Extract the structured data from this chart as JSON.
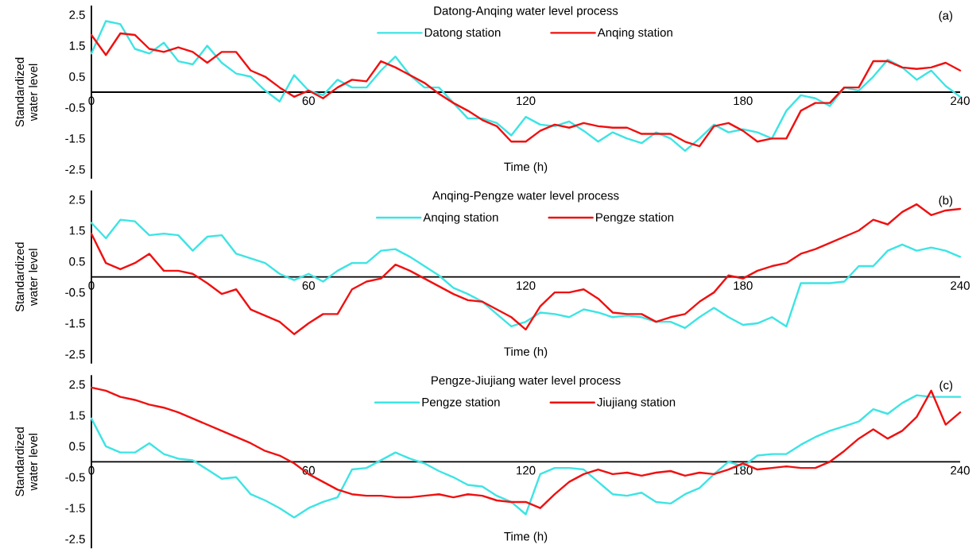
{
  "chart_data": [
    {
      "type": "line",
      "title": "Datong-Anqing water level process",
      "xlabel": "Time (h)",
      "ylabel": "Standardized water level",
      "annotations": [
        "(a)"
      ],
      "legend": "top",
      "x": [
        0,
        4,
        8,
        12,
        16,
        20,
        24,
        28,
        32,
        36,
        40,
        44,
        48,
        52,
        56,
        60,
        64,
        68,
        72,
        76,
        80,
        84,
        88,
        92,
        96,
        100,
        104,
        108,
        112,
        116,
        120,
        124,
        128,
        132,
        136,
        140,
        144,
        148,
        152,
        156,
        160,
        164,
        168,
        172,
        176,
        180,
        184,
        188,
        192,
        196,
        200,
        204,
        208,
        212,
        216,
        220,
        224,
        228,
        232,
        236,
        240
      ],
      "xlim": [
        0,
        240
      ],
      "xticks": [
        0,
        60,
        120,
        180,
        240
      ],
      "ylim": [
        -2.8,
        2.8
      ],
      "yticks": [
        -2.5,
        -1.5,
        -0.5,
        0.5,
        1.5,
        2.5
      ],
      "series": [
        {
          "name": "Datong station",
          "color": "#3de4e4",
          "values": [
            1.25,
            2.3,
            2.2,
            1.4,
            1.25,
            1.6,
            1.0,
            0.9,
            1.5,
            0.95,
            0.6,
            0.5,
            0.05,
            -0.3,
            0.55,
            0.05,
            -0.1,
            0.4,
            0.15,
            0.15,
            0.7,
            1.15,
            0.55,
            0.15,
            0.15,
            -0.35,
            -0.85,
            -0.85,
            -1.0,
            -1.4,
            -0.8,
            -1.05,
            -1.1,
            -0.95,
            -1.25,
            -1.6,
            -1.3,
            -1.5,
            -1.65,
            -1.3,
            -1.5,
            -1.9,
            -1.5,
            -1.05,
            -1.3,
            -1.2,
            -1.3,
            -1.5,
            -0.6,
            -0.1,
            -0.2,
            -0.45,
            0.15,
            0.05,
            0.5,
            1.05,
            0.8,
            0.4,
            0.7,
            0.2,
            -0.15
          ]
        },
        {
          "name": "Anqing station",
          "color": "#f01010",
          "values": [
            1.85,
            1.2,
            1.9,
            1.85,
            1.4,
            1.3,
            1.45,
            1.3,
            0.95,
            1.3,
            1.3,
            0.7,
            0.5,
            0.15,
            -0.15,
            0.05,
            -0.2,
            0.15,
            0.4,
            0.35,
            1.0,
            0.8,
            0.55,
            0.3,
            -0.05,
            -0.35,
            -0.6,
            -0.9,
            -1.1,
            -1.6,
            -1.6,
            -1.25,
            -1.05,
            -1.15,
            -1.0,
            -1.1,
            -1.15,
            -1.15,
            -1.35,
            -1.35,
            -1.35,
            -1.6,
            -1.75,
            -1.1,
            -1.0,
            -1.25,
            -1.6,
            -1.5,
            -1.5,
            -0.6,
            -0.35,
            -0.35,
            0.15,
            0.15,
            1.0,
            1.0,
            0.8,
            0.75,
            0.8,
            0.95,
            0.7
          ]
        }
      ]
    },
    {
      "type": "line",
      "title": "Anqing-Pengze water level process",
      "xlabel": "Time (h)",
      "ylabel": "Standardized water level",
      "annotations": [
        "(b)"
      ],
      "legend": "top",
      "x": [
        0,
        4,
        8,
        12,
        16,
        20,
        24,
        28,
        32,
        36,
        40,
        44,
        48,
        52,
        56,
        60,
        64,
        68,
        72,
        76,
        80,
        84,
        88,
        92,
        96,
        100,
        104,
        108,
        112,
        116,
        120,
        124,
        128,
        132,
        136,
        140,
        144,
        148,
        152,
        156,
        160,
        164,
        168,
        172,
        176,
        180,
        184,
        188,
        192,
        196,
        200,
        204,
        208,
        212,
        216,
        220,
        224,
        228,
        232,
        236,
        240
      ],
      "xlim": [
        0,
        240
      ],
      "xticks": [
        0,
        60,
        120,
        180,
        240
      ],
      "ylim": [
        -2.8,
        2.8
      ],
      "yticks": [
        -2.5,
        -1.5,
        -0.5,
        0.5,
        1.5,
        2.5
      ],
      "series": [
        {
          "name": "Anqing station",
          "color": "#3de4e4",
          "values": [
            1.75,
            1.25,
            1.85,
            1.8,
            1.35,
            1.4,
            1.35,
            0.85,
            1.3,
            1.35,
            0.75,
            0.6,
            0.45,
            0.1,
            -0.1,
            0.1,
            -0.15,
            0.2,
            0.45,
            0.45,
            0.85,
            0.9,
            0.65,
            0.35,
            0.05,
            -0.35,
            -0.55,
            -0.8,
            -1.2,
            -1.6,
            -1.45,
            -1.15,
            -1.2,
            -1.3,
            -1.05,
            -1.15,
            -1.3,
            -1.25,
            -1.3,
            -1.45,
            -1.45,
            -1.65,
            -1.3,
            -1.0,
            -1.3,
            -1.55,
            -1.5,
            -1.3,
            -1.6,
            -0.2,
            -0.2,
            -0.2,
            -0.15,
            0.35,
            0.35,
            0.85,
            1.05,
            0.85,
            0.95,
            0.85,
            0.65
          ]
        },
        {
          "name": "Pengze station",
          "color": "#f01010",
          "values": [
            1.4,
            0.45,
            0.25,
            0.45,
            0.75,
            0.2,
            0.2,
            0.1,
            -0.2,
            -0.55,
            -0.4,
            -1.05,
            -1.25,
            -1.45,
            -1.85,
            -1.5,
            -1.2,
            -1.2,
            -0.4,
            -0.15,
            -0.05,
            0.4,
            0.2,
            -0.05,
            -0.3,
            -0.55,
            -0.75,
            -0.8,
            -1.05,
            -1.3,
            -1.7,
            -0.95,
            -0.5,
            -0.5,
            -0.4,
            -0.7,
            -1.15,
            -1.2,
            -1.2,
            -1.45,
            -1.3,
            -1.2,
            -0.8,
            -0.5,
            0.05,
            -0.05,
            0.2,
            0.35,
            0.45,
            0.75,
            0.9,
            1.1,
            1.3,
            1.5,
            1.85,
            1.7,
            2.1,
            2.35,
            2.0,
            2.15,
            2.2
          ]
        }
      ]
    },
    {
      "type": "line",
      "title": "Pengze-Jiujiang water level process",
      "xlabel": "Time (h)",
      "ylabel": "Standardized water level",
      "annotations": [
        "(c)"
      ],
      "legend": "top",
      "x": [
        0,
        4,
        8,
        12,
        16,
        20,
        24,
        28,
        32,
        36,
        40,
        44,
        48,
        52,
        56,
        60,
        64,
        68,
        72,
        76,
        80,
        84,
        88,
        92,
        96,
        100,
        104,
        108,
        112,
        116,
        120,
        124,
        128,
        132,
        136,
        140,
        144,
        148,
        152,
        156,
        160,
        164,
        168,
        172,
        176,
        180,
        184,
        188,
        192,
        196,
        200,
        204,
        208,
        212,
        216,
        220,
        224,
        228,
        232,
        236,
        240
      ],
      "xlim": [
        0,
        240
      ],
      "xticks": [
        0,
        60,
        120,
        180,
        240
      ],
      "ylim": [
        -2.8,
        2.8
      ],
      "yticks": [
        -2.5,
        -1.5,
        -0.5,
        0.5,
        1.5,
        2.5
      ],
      "series": [
        {
          "name": "Pengze station",
          "color": "#3de4e4",
          "values": [
            1.4,
            0.5,
            0.3,
            0.3,
            0.6,
            0.25,
            0.1,
            0.05,
            -0.25,
            -0.55,
            -0.5,
            -1.05,
            -1.25,
            -1.5,
            -1.8,
            -1.5,
            -1.3,
            -1.15,
            -0.25,
            -0.2,
            0.05,
            0.3,
            0.1,
            -0.05,
            -0.3,
            -0.5,
            -0.75,
            -0.8,
            -1.1,
            -1.3,
            -1.7,
            -0.4,
            -0.2,
            -0.2,
            -0.25,
            -0.65,
            -1.05,
            -1.1,
            -1.0,
            -1.3,
            -1.35,
            -1.05,
            -0.85,
            -0.4,
            0,
            -0.15,
            0.2,
            0.25,
            0.25,
            0.55,
            0.8,
            1.0,
            1.15,
            1.3,
            1.7,
            1.55,
            1.9,
            2.15,
            2.1,
            2.1,
            2.1
          ]
        },
        {
          "name": "Jiujiang station",
          "color": "#f01010",
          "values": [
            2.4,
            2.3,
            2.1,
            2.0,
            1.85,
            1.75,
            1.6,
            1.4,
            1.2,
            1.0,
            0.8,
            0.6,
            0.35,
            0.2,
            -0.05,
            -0.4,
            -0.65,
            -0.9,
            -1.05,
            -1.1,
            -1.1,
            -1.15,
            -1.15,
            -1.1,
            -1.05,
            -1.15,
            -1.05,
            -1.1,
            -1.25,
            -1.3,
            -1.3,
            -1.5,
            -1.05,
            -0.65,
            -0.4,
            -0.25,
            -0.4,
            -0.35,
            -0.45,
            -0.35,
            -0.3,
            -0.45,
            -0.35,
            -0.4,
            -0.25,
            -0.05,
            -0.25,
            -0.2,
            -0.15,
            -0.2,
            -0.2,
            0,
            0.35,
            0.75,
            1.05,
            0.75,
            1.0,
            1.45,
            2.3,
            1.2,
            1.6
          ]
        }
      ]
    }
  ]
}
